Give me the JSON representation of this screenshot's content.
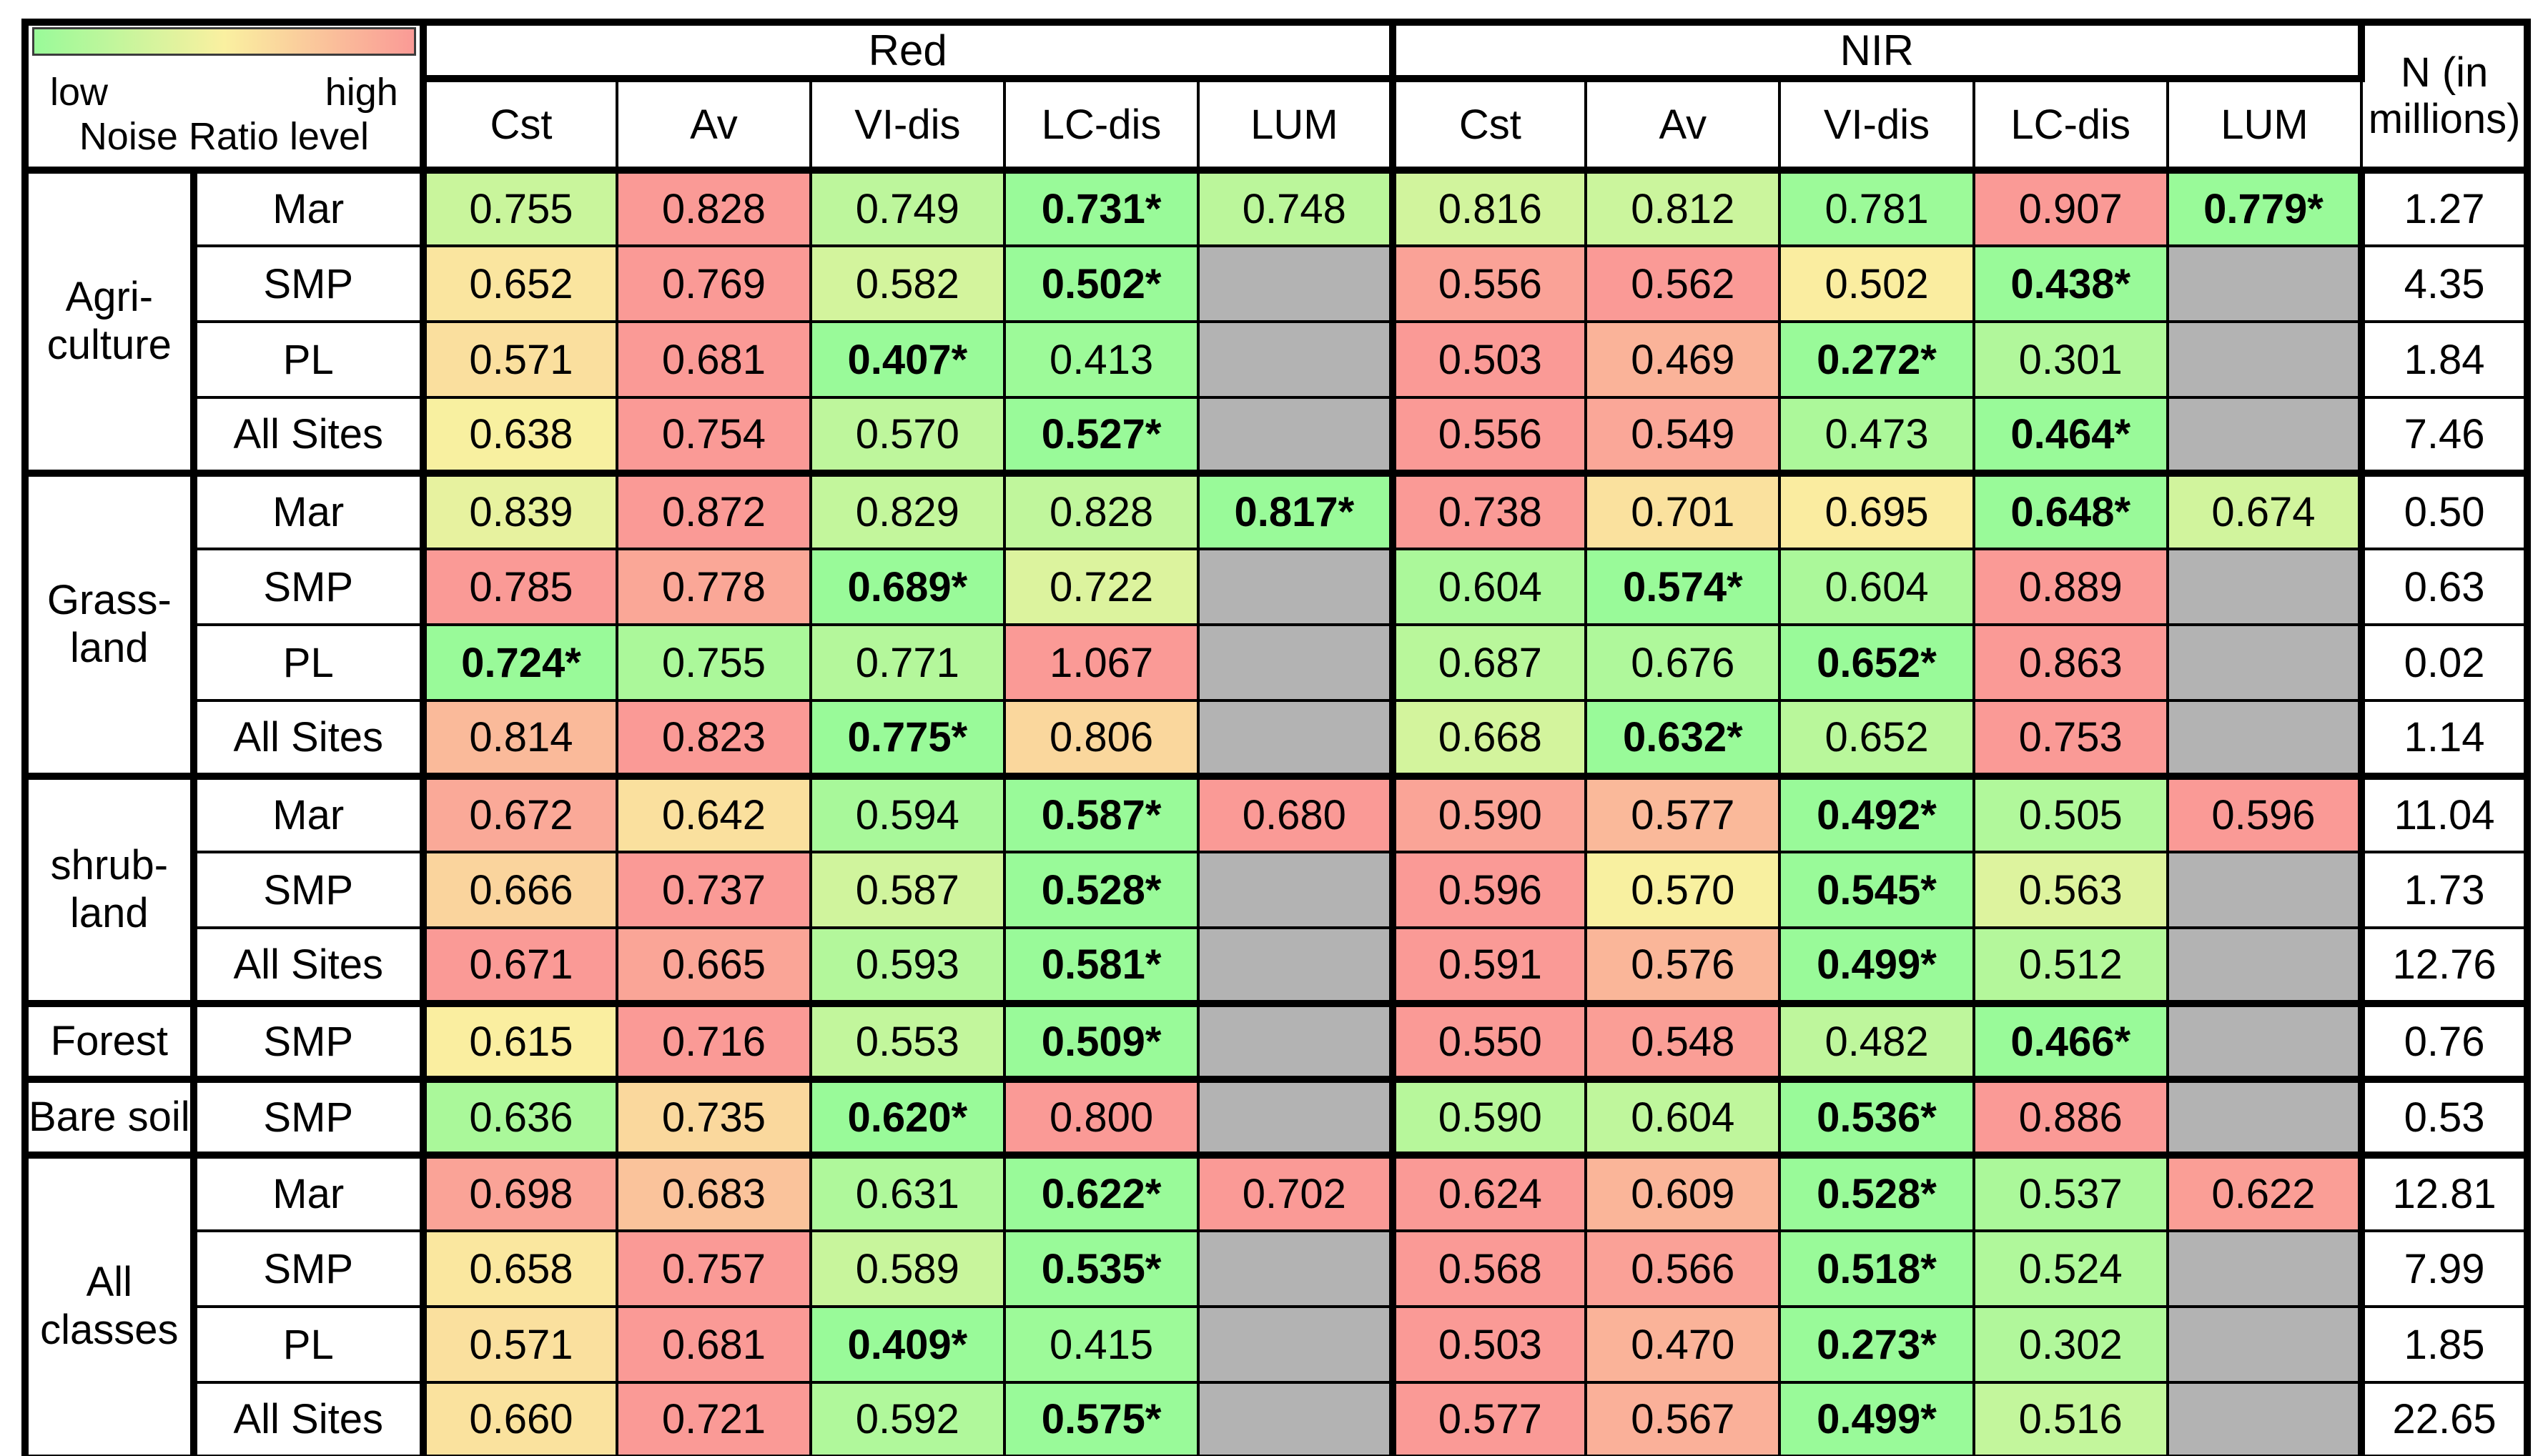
{
  "legend": {
    "low_label": "low",
    "high_label": "high",
    "title": "Noise Ratio level"
  },
  "header": {
    "red_label": "Red",
    "nir_label": "NIR",
    "n_line1": "N (in",
    "n_line2": "millions)",
    "subcolumns": [
      "Cst",
      "Av",
      "VI-dis",
      "LC-dis",
      "LUM"
    ]
  },
  "colors": {
    "scale_green": "#99FA99",
    "scale_yellow": "#FAF0A0",
    "scale_red": "#FA9A96",
    "empty_cell": "#B3B3B3",
    "border": "#000000"
  },
  "groups": [
    {
      "label_lines": [
        "Agri-",
        "culture"
      ],
      "rows": [
        {
          "site": "Mar",
          "red": [
            "0.755",
            "0.828",
            "0.749",
            "0.731*",
            "0.748"
          ],
          "nir": [
            "0.816",
            "0.812",
            "0.781",
            "0.907",
            "0.779*"
          ],
          "n": "1.27"
        },
        {
          "site": "SMP",
          "red": [
            "0.652",
            "0.769",
            "0.582",
            "0.502*",
            null
          ],
          "nir": [
            "0.556",
            "0.562",
            "0.502",
            "0.438*",
            null
          ],
          "n": "4.35"
        },
        {
          "site": "PL",
          "red": [
            "0.571",
            "0.681",
            "0.407*",
            "0.413",
            null
          ],
          "nir": [
            "0.503",
            "0.469",
            "0.272*",
            "0.301",
            null
          ],
          "n": "1.84"
        },
        {
          "site": "All Sites",
          "red": [
            "0.638",
            "0.754",
            "0.570",
            "0.527*",
            null
          ],
          "nir": [
            "0.556",
            "0.549",
            "0.473",
            "0.464*",
            null
          ],
          "n": "7.46"
        }
      ]
    },
    {
      "label_lines": [
        "Grass-",
        "land"
      ],
      "rows": [
        {
          "site": "Mar",
          "red": [
            "0.839",
            "0.872",
            "0.829",
            "0.828",
            "0.817*"
          ],
          "nir": [
            "0.738",
            "0.701",
            "0.695",
            "0.648*",
            "0.674"
          ],
          "n": "0.50"
        },
        {
          "site": "SMP",
          "red": [
            "0.785",
            "0.778",
            "0.689*",
            "0.722",
            null
          ],
          "nir": [
            "0.604",
            "0.574*",
            "0.604",
            "0.889",
            null
          ],
          "n": "0.63"
        },
        {
          "site": "PL",
          "red": [
            "0.724*",
            "0.755",
            "0.771",
            "1.067",
            null
          ],
          "nir": [
            "0.687",
            "0.676",
            "0.652*",
            "0.863",
            null
          ],
          "n": "0.02"
        },
        {
          "site": "All Sites",
          "red": [
            "0.814",
            "0.823",
            "0.775*",
            "0.806",
            null
          ],
          "nir": [
            "0.668",
            "0.632*",
            "0.652",
            "0.753",
            null
          ],
          "n": "1.14"
        }
      ]
    },
    {
      "label_lines": [
        "shrub-",
        "land"
      ],
      "rows": [
        {
          "site": "Mar",
          "red": [
            "0.672",
            "0.642",
            "0.594",
            "0.587*",
            "0.680"
          ],
          "nir": [
            "0.590",
            "0.577",
            "0.492*",
            "0.505",
            "0.596"
          ],
          "n": "11.04"
        },
        {
          "site": "SMP",
          "red": [
            "0.666",
            "0.737",
            "0.587",
            "0.528*",
            null
          ],
          "nir": [
            "0.596",
            "0.570",
            "0.545*",
            "0.563",
            null
          ],
          "n": "1.73"
        },
        {
          "site": "All Sites",
          "red": [
            "0.671",
            "0.665",
            "0.593",
            "0.581*",
            null
          ],
          "nir": [
            "0.591",
            "0.576",
            "0.499*",
            "0.512",
            null
          ],
          "n": "12.76"
        }
      ]
    },
    {
      "label_lines": [
        "Forest"
      ],
      "rows": [
        {
          "site": "SMP",
          "red": [
            "0.615",
            "0.716",
            "0.553",
            "0.509*",
            null
          ],
          "nir": [
            "0.550",
            "0.548",
            "0.482",
            "0.466*",
            null
          ],
          "n": "0.76"
        }
      ]
    },
    {
      "label_lines": [
        "Bare soil"
      ],
      "rows": [
        {
          "site": "SMP",
          "red": [
            "0.636",
            "0.735",
            "0.620*",
            "0.800",
            null
          ],
          "nir": [
            "0.590",
            "0.604",
            "0.536*",
            "0.886",
            null
          ],
          "n": "0.53"
        }
      ]
    },
    {
      "label_lines": [
        "All",
        "classes"
      ],
      "rows": [
        {
          "site": "Mar",
          "red": [
            "0.698",
            "0.683",
            "0.631",
            "0.622*",
            "0.702"
          ],
          "nir": [
            "0.624",
            "0.609",
            "0.528*",
            "0.537",
            "0.622"
          ],
          "n": "12.81"
        },
        {
          "site": "SMP",
          "red": [
            "0.658",
            "0.757",
            "0.589",
            "0.535*",
            null
          ],
          "nir": [
            "0.568",
            "0.566",
            "0.518*",
            "0.524",
            null
          ],
          "n": "7.99"
        },
        {
          "site": "PL",
          "red": [
            "0.571",
            "0.681",
            "0.409*",
            "0.415",
            null
          ],
          "nir": [
            "0.503",
            "0.470",
            "0.273*",
            "0.302",
            null
          ],
          "n": "1.85"
        },
        {
          "site": "All Sites",
          "red": [
            "0.660",
            "0.721",
            "0.592",
            "0.575*",
            null
          ],
          "nir": [
            "0.577",
            "0.567",
            "0.499*",
            "0.516",
            null
          ],
          "n": "22.65"
        }
      ]
    }
  ]
}
